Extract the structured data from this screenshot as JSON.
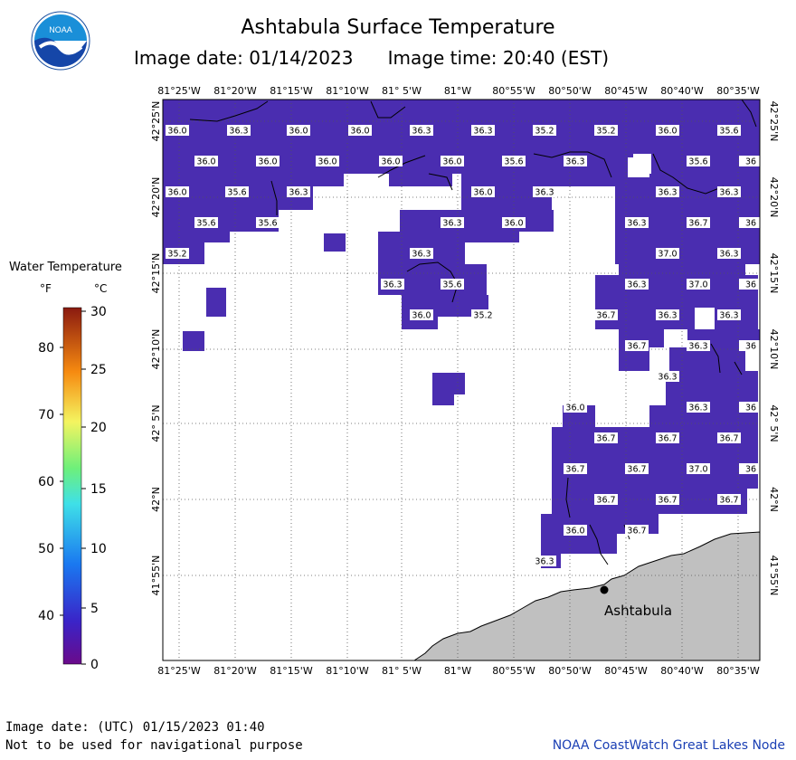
{
  "header": {
    "title": "Ashtabula Surface Temperature",
    "subtitle_date_label": "Image date: 01/14/2023",
    "subtitle_time_label": "Image time: 20:40 (EST)"
  },
  "logo": {
    "text": "NOAA"
  },
  "legend": {
    "title": "Water Temperature",
    "unit_f": "°F",
    "unit_c": "°C",
    "f_ticks": [
      "80",
      "70",
      "60",
      "50",
      "40"
    ],
    "c_ticks": [
      "30",
      "25",
      "20",
      "15",
      "10",
      "5",
      "0"
    ]
  },
  "map": {
    "top_lon_labels": [
      "81°25'W",
      "81°20'W",
      "81°15'W",
      "81°10'W",
      "81° 5'W",
      "81°W",
      "80°55'W",
      "80°50'W",
      "80°45'W",
      "80°40'W",
      "80°35'W"
    ],
    "bottom_lon_labels": [
      "81°25'W",
      "81°20'W",
      "81°15'W",
      "81°10'W",
      "81° 5'W",
      "81°W",
      "80°55'W",
      "80°50'W",
      "80°45'W",
      "80°40'W",
      "80°35'W"
    ],
    "lat_labels": [
      "42°25'N",
      "42°20'N",
      "42°15'N",
      "42°10'N",
      "42° 5'N",
      "42°N",
      "41°55'N"
    ],
    "city_label": "Ashtabula",
    "temperature_labels": [
      "36.0",
      "36.3",
      "36.0",
      "36.0",
      "36.3",
      "36.3",
      "35.2",
      "35.2",
      "36.0",
      "35.6",
      "36.0",
      "36.0",
      "36.0",
      "36.0",
      "36.0",
      "35.6",
      "36.3",
      "35.6",
      "36",
      "36.0",
      "35.6",
      "36.3",
      "36.0",
      "36.3",
      "36.3",
      "36.3",
      "35.6",
      "35.6",
      "36.3",
      "36.0",
      "36.3",
      "36.7",
      "36",
      "35.2",
      "36.3",
      "37.0",
      "36.3",
      "36.3",
      "35.6",
      "36.3",
      "37.0",
      "36",
      "36.0",
      "35.2",
      "36.7",
      "36.3",
      "36.3",
      "36.7",
      "36.3",
      "36",
      "36.3",
      "36.0",
      "36.3",
      "36",
      "36.7",
      "36.7",
      "36.7",
      "36.7",
      "36.7",
      "37.0",
      "36",
      "36.7",
      "36.7",
      "36.7",
      "36.0",
      "36.7",
      "36.3"
    ]
  },
  "footer": {
    "utc_date": "Image date: (UTC) 01/15/2023  01:40",
    "note": "Not to be used for navigational purpose",
    "credit": "NOAA CoastWatch Great Lakes Node"
  },
  "colors": {
    "water": "#4a2db0",
    "land": "#c0c0c0",
    "grid": "#555555",
    "credit": "#1a3fb4"
  }
}
